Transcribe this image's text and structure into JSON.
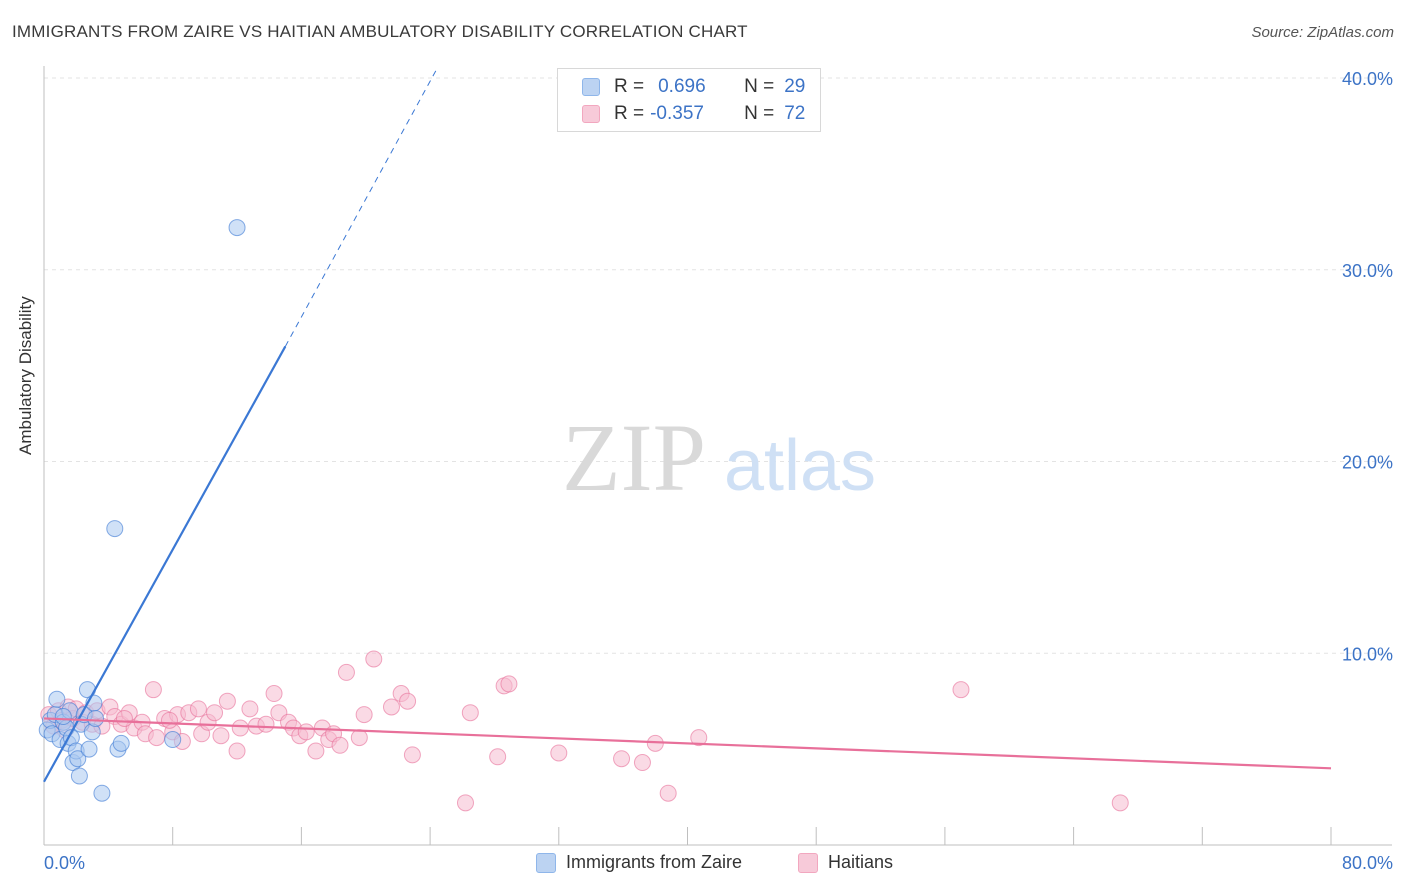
{
  "title": "IMMIGRANTS FROM ZAIRE VS HAITIAN AMBULATORY DISABILITY CORRELATION CHART",
  "source": "Source: ZipAtlas.com",
  "watermark": {
    "zip": "ZIP",
    "atlas": "atlas"
  },
  "legend": {
    "rows": [
      {
        "r_label": "R =",
        "r_value": "0.696",
        "n_label": "N =",
        "n_value": "29",
        "color": "#8fb6ea"
      },
      {
        "r_label": "R =",
        "r_value": "-0.357",
        "n_label": "N =",
        "n_value": "72",
        "color": "#f2a7bf"
      }
    ]
  },
  "bottom_legend": [
    {
      "label": "Immigrants from Zaire",
      "color": "#8fb6ea"
    },
    {
      "label": "Haitians",
      "color": "#f2a7bf"
    }
  ],
  "chart_data": {
    "type": "scatter",
    "title": "IMMIGRANTS FROM ZAIRE VS HAITIAN AMBULATORY DISABILITY CORRELATION CHART",
    "xlabel": "",
    "ylabel": "Ambulatory Disability",
    "xlim": [
      0,
      80
    ],
    "ylim": [
      0,
      40
    ],
    "x_tick_labels": [
      "0.0%",
      "80.0%"
    ],
    "y_ticks": [
      10,
      20,
      30,
      40
    ],
    "y_tick_labels": [
      "10.0%",
      "20.0%",
      "30.0%",
      "40.0%"
    ],
    "grid": true,
    "series": [
      {
        "name": "Immigrants from Zaire",
        "color": "#3b78d4",
        "fill": "#a9c8f0",
        "points": [
          [
            0.2,
            6.0
          ],
          [
            0.4,
            6.5
          ],
          [
            0.5,
            5.8
          ],
          [
            0.7,
            6.8
          ],
          [
            0.8,
            7.6
          ],
          [
            1.0,
            5.5
          ],
          [
            1.2,
            6.4
          ],
          [
            1.4,
            6.1
          ],
          [
            1.5,
            5.3
          ],
          [
            1.6,
            7.0
          ],
          [
            1.7,
            5.6
          ],
          [
            1.8,
            4.3
          ],
          [
            2.0,
            4.9
          ],
          [
            2.1,
            4.5
          ],
          [
            2.2,
            3.6
          ],
          [
            2.3,
            6.3
          ],
          [
            2.5,
            6.8
          ],
          [
            2.7,
            8.1
          ],
          [
            2.8,
            5.0
          ],
          [
            3.0,
            5.9
          ],
          [
            3.1,
            7.4
          ],
          [
            3.2,
            6.6
          ],
          [
            3.6,
            2.7
          ],
          [
            4.4,
            16.5
          ],
          [
            4.6,
            5.0
          ],
          [
            4.8,
            5.3
          ],
          [
            8.0,
            5.5
          ],
          [
            12.0,
            32.2
          ],
          [
            1.2,
            6.7
          ]
        ],
        "trend_solid": [
          [
            0,
            3.3
          ],
          [
            15,
            26.0
          ]
        ],
        "trend_dashed": [
          [
            15,
            26.0
          ],
          [
            24.5,
            40.6
          ]
        ]
      },
      {
        "name": "Haitians",
        "color": "#e8709a",
        "fill": "#f6bccf",
        "points": [
          [
            0.3,
            6.8
          ],
          [
            0.6,
            6.2
          ],
          [
            0.9,
            7.0
          ],
          [
            1.1,
            6.5
          ],
          [
            1.3,
            6.0
          ],
          [
            1.5,
            7.2
          ],
          [
            1.8,
            6.6
          ],
          [
            2.0,
            7.1
          ],
          [
            2.4,
            6.4
          ],
          [
            2.6,
            6.9
          ],
          [
            3.0,
            6.3
          ],
          [
            3.3,
            7.0
          ],
          [
            3.6,
            6.2
          ],
          [
            4.1,
            7.2
          ],
          [
            4.4,
            6.7
          ],
          [
            4.8,
            6.3
          ],
          [
            5.3,
            6.9
          ],
          [
            5.6,
            6.1
          ],
          [
            6.1,
            6.4
          ],
          [
            6.3,
            5.8
          ],
          [
            6.8,
            8.1
          ],
          [
            7.0,
            5.6
          ],
          [
            7.5,
            6.6
          ],
          [
            8.0,
            5.9
          ],
          [
            8.3,
            6.8
          ],
          [
            8.6,
            5.4
          ],
          [
            9.0,
            6.9
          ],
          [
            9.6,
            7.1
          ],
          [
            9.8,
            5.8
          ],
          [
            10.2,
            6.4
          ],
          [
            10.6,
            6.9
          ],
          [
            11.0,
            5.7
          ],
          [
            11.4,
            7.5
          ],
          [
            12.0,
            4.9
          ],
          [
            12.2,
            6.1
          ],
          [
            12.8,
            7.1
          ],
          [
            13.2,
            6.2
          ],
          [
            13.8,
            6.3
          ],
          [
            14.3,
            7.9
          ],
          [
            14.6,
            6.9
          ],
          [
            15.2,
            6.4
          ],
          [
            15.5,
            6.1
          ],
          [
            15.9,
            5.7
          ],
          [
            16.3,
            5.9
          ],
          [
            16.9,
            4.9
          ],
          [
            17.3,
            6.1
          ],
          [
            17.7,
            5.5
          ],
          [
            18.0,
            5.8
          ],
          [
            18.4,
            5.2
          ],
          [
            18.8,
            9.0
          ],
          [
            19.6,
            5.6
          ],
          [
            19.9,
            6.8
          ],
          [
            20.5,
            9.7
          ],
          [
            21.6,
            7.2
          ],
          [
            22.2,
            7.9
          ],
          [
            22.6,
            7.5
          ],
          [
            22.9,
            4.7
          ],
          [
            26.2,
            2.2
          ],
          [
            26.5,
            6.9
          ],
          [
            28.2,
            4.6
          ],
          [
            28.6,
            8.3
          ],
          [
            28.9,
            8.4
          ],
          [
            32.0,
            4.8
          ],
          [
            35.9,
            4.5
          ],
          [
            37.2,
            4.3
          ],
          [
            38.0,
            5.3
          ],
          [
            38.8,
            2.7
          ],
          [
            40.7,
            5.6
          ],
          [
            57.0,
            8.1
          ],
          [
            66.9,
            2.2
          ],
          [
            5.0,
            6.6
          ],
          [
            7.8,
            6.5
          ]
        ],
        "trend_solid": [
          [
            0,
            6.6
          ],
          [
            80,
            4.0
          ]
        ]
      }
    ]
  }
}
